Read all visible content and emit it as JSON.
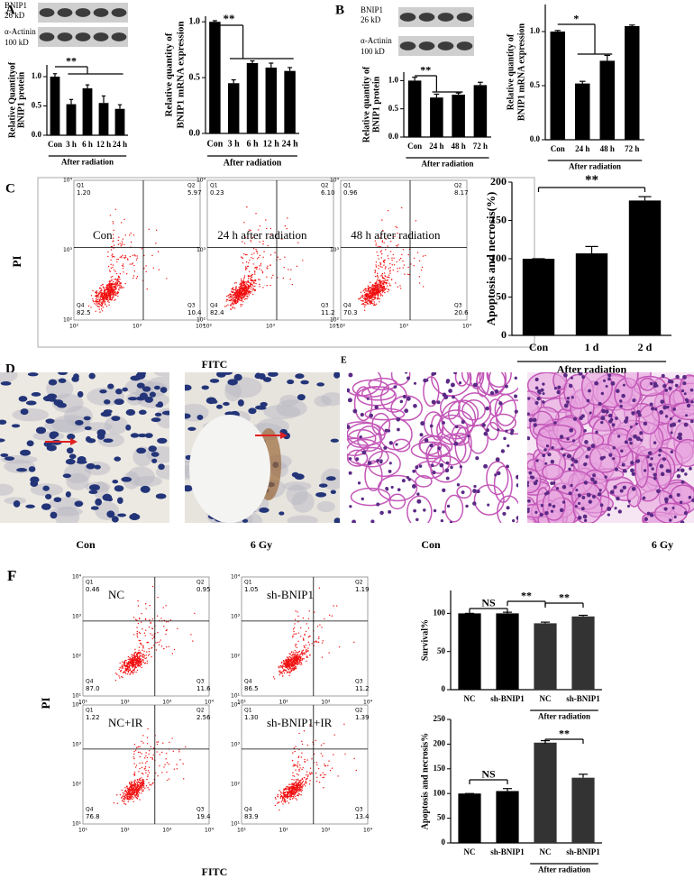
{
  "panel_labels": [
    "A",
    "B",
    "C",
    "D",
    "E",
    "F"
  ],
  "blots": [
    {
      "labels": [
        "BNIP1",
        "26 kD",
        "α-Actinin",
        "100 kD"
      ]
    },
    {
      "labels": [
        "BNIP1",
        "26 kD",
        "α-Actinin",
        "100 kD"
      ]
    }
  ],
  "flow_c": {
    "xlabel": "FITC",
    "ylabel": "PI",
    "ticks": [
      "10²",
      "10³",
      "10⁴"
    ],
    "quadrants": [
      "Q1",
      "Q2",
      "Q3",
      "Q4"
    ],
    "plots": [
      {
        "label": "Con",
        "values": [
          "1.20",
          "5.97",
          "10.4",
          "82.5"
        ]
      },
      {
        "label": "24 h after radiation",
        "values": [
          "0.23",
          "6.10",
          "11.2",
          "82.4"
        ]
      },
      {
        "label": "48 h after radiation",
        "values": [
          "0.96",
          "8.17",
          "20.6",
          "70.3"
        ]
      }
    ]
  },
  "flow_f": {
    "xlabel": "FITC",
    "ylabel": "PI",
    "ticks": [
      "10¹",
      "10²",
      "10³",
      "10⁴"
    ],
    "quadrants": [
      "Q1",
      "Q2",
      "Q3",
      "Q4"
    ],
    "plots": [
      {
        "label": "NC",
        "values": [
          "0.46",
          "0.95",
          "11.6",
          "87.0"
        ]
      },
      {
        "label": "sh-BNIP1",
        "values": [
          "1.05",
          "1.19",
          "11.2",
          "86.5"
        ]
      },
      {
        "label": "NC+IR",
        "values": [
          "1.22",
          "2.56",
          "19.4",
          "76.8"
        ]
      },
      {
        "label": "sh-BNIP1+IR",
        "values": [
          "1.30",
          "1.39",
          "13.4",
          "83.9"
        ]
      }
    ]
  },
  "histology": {
    "captions": [
      "Con",
      "6 Gy",
      "Con",
      "6 Gy"
    ]
  },
  "chart_data": [
    {
      "type": "bar",
      "ylabel": [
        "Relative Quantityof",
        "BNIP1 protein"
      ],
      "categories": [
        "Con",
        "3 h",
        "6 h",
        "12 h",
        "24 h"
      ],
      "values": [
        1.0,
        0.53,
        0.8,
        0.55,
        0.45
      ],
      "errors": [
        0.05,
        0.08,
        0.06,
        0.12,
        0.07
      ],
      "color": "#000000",
      "ylim": [
        0,
        1.2
      ],
      "yticks": [
        {
          "value": 0,
          "label": "0.0"
        },
        {
          "value": 0.5,
          "label": "0.5"
        },
        {
          "value": 1,
          "label": "1.0"
        }
      ],
      "xlabel": "After radiation",
      "annotations": [
        "**"
      ]
    },
    {
      "type": "bar",
      "ylabel": [
        "Relative quantity of",
        "BNIP1 mRNA expression"
      ],
      "categories": [
        "Con",
        "3 h",
        "6 h",
        "12 h",
        "24 h"
      ],
      "values": [
        1.0,
        0.45,
        0.63,
        0.59,
        0.56
      ],
      "errors": [
        0.01,
        0.03,
        0.02,
        0.04,
        0.03
      ],
      "color": "#000000",
      "ylim": [
        0,
        1.05
      ],
      "yticks": [
        {
          "value": 0,
          "label": "0.0"
        },
        {
          "value": 0.5,
          "label": "0.5"
        },
        {
          "value": 1,
          "label": "1.0"
        }
      ],
      "xlabel": "After radiation",
      "annotations": [
        "**"
      ]
    },
    {
      "type": "bar",
      "ylabel": [
        "Relative quantity of",
        "BNIP1 protein"
      ],
      "categories": [
        "Con",
        "24 h",
        "48 h",
        "72 h"
      ],
      "values": [
        1.0,
        0.7,
        0.75,
        0.92
      ],
      "errors": [
        0.06,
        0.06,
        0.03,
        0.05
      ],
      "color": "#000000",
      "ylim": [
        0,
        1.15
      ],
      "yticks": [
        {
          "value": 0,
          "label": "0.0"
        },
        {
          "value": 0.5,
          "label": "0.5"
        },
        {
          "value": 1,
          "label": "1.0"
        }
      ],
      "xlabel": "After radiation",
      "annotations": [
        "**"
      ]
    },
    {
      "type": "bar",
      "ylabel": [
        "Relative quantity of",
        "BNIP1 mRNA expression"
      ],
      "categories": [
        "Con",
        "24 h",
        "48 h",
        "72 h"
      ],
      "values": [
        1.0,
        0.52,
        0.73,
        1.05
      ],
      "errors": [
        0.01,
        0.02,
        0.05,
        0.01
      ],
      "color": "#000000",
      "ylim": [
        0,
        1.25
      ],
      "yticks": [
        {
          "value": 0,
          "label": "0.0"
        },
        {
          "value": 0.5,
          "label": "0.5"
        },
        {
          "value": 1,
          "label": "1.0"
        }
      ],
      "xlabel": "After radiation",
      "annotations": [
        "*"
      ]
    },
    {
      "type": "bar",
      "ylabel": [
        "Apoptosis and necrosis(%)"
      ],
      "categories": [
        "Con",
        "1 d",
        "2 d"
      ],
      "values": [
        100,
        107,
        176
      ],
      "errors": [
        0,
        9,
        5
      ],
      "color": "#000000",
      "ylim": [
        0,
        200
      ],
      "yticks": [
        0,
        50,
        100,
        150,
        200
      ],
      "xlabel": "After radiation",
      "annotations": [
        "**"
      ]
    },
    {
      "type": "bar",
      "ylabel": [
        "Survival%"
      ],
      "categories": [
        "NC",
        "sh-BNIP1",
        "NC",
        "sh-BNIP1"
      ],
      "values": [
        100,
        100,
        87,
        96
      ],
      "errors": [
        0,
        1.5,
        1.5,
        1.5
      ],
      "colors": [
        "#000000",
        "#000000",
        "#333333",
        "#333333"
      ],
      "ylim": [
        0,
        130
      ],
      "yticks": [
        0,
        50,
        100
      ],
      "xlabel": "After radiation",
      "annotations": [
        "NS",
        "**",
        "**"
      ]
    },
    {
      "type": "bar",
      "ylabel": [
        "Apoptosis and necrosis%"
      ],
      "categories": [
        "NC",
        "sh-BNIP1",
        "NC",
        "sh-BNIP1"
      ],
      "values": [
        100,
        105,
        203,
        132
      ],
      "errors": [
        0,
        5,
        4,
        7
      ],
      "colors": [
        "#000000",
        "#000000",
        "#333333",
        "#333333"
      ],
      "ylim": [
        0,
        250
      ],
      "yticks": [
        0,
        50,
        100,
        150,
        200,
        250
      ],
      "xlabel": "After radiation",
      "annotations": [
        "NS",
        "**"
      ]
    }
  ]
}
